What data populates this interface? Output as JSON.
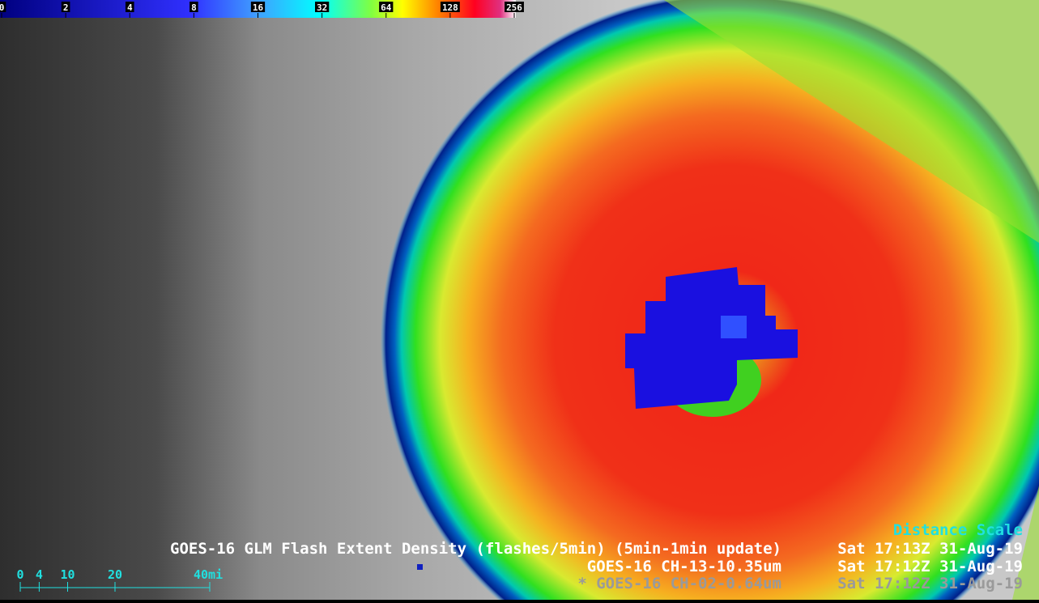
{
  "colorbar": {
    "ticks": [
      0,
      2,
      4,
      8,
      16,
      32,
      64,
      128,
      256
    ]
  },
  "legend": {
    "distance_title": "Distance Scale",
    "lines": [
      {
        "product": "GOES-16 GLM Flash Extent Density (flashes/5min) (5min-1min update)",
        "time": "Sat 17:13Z 31-Aug-19"
      },
      {
        "product": "GOES-16 CH-13-10.35um",
        "time": "Sat 17:12Z 31-Aug-19"
      },
      {
        "product": "* GOES-16 CH-02-0.64um",
        "time": "Sat 17:12Z 31-Aug-19"
      }
    ]
  },
  "distance_scale": {
    "ticks": [
      0,
      4,
      10,
      20,
      {
        "value": 40,
        "label": "40mi"
      }
    ]
  }
}
